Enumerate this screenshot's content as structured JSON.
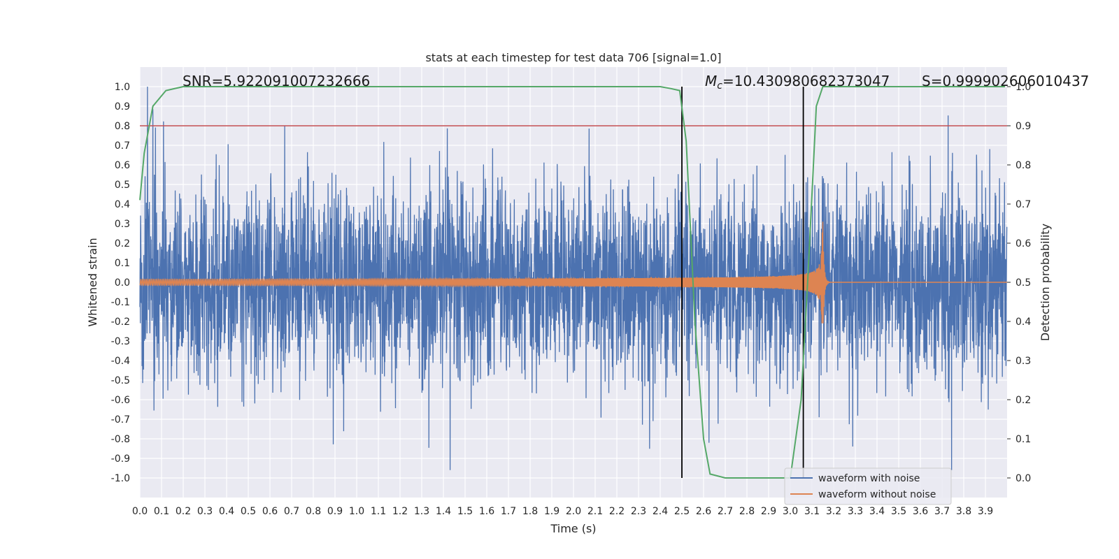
{
  "chart_data": {
    "type": "line",
    "title": "stats at each timestep for test data 706 [signal=1.0]",
    "xlabel": "Time (s)",
    "ylabel_left": "Whitened strain",
    "ylabel_right": "Detection probability",
    "xlim": [
      0.0,
      4.0
    ],
    "ylim_left": [
      -1.1,
      1.1
    ],
    "ylim_right": [
      -0.05,
      1.05
    ],
    "grid": true,
    "legend_position": "lower-right",
    "x_ticks": [
      "0.0",
      "0.1",
      "0.2",
      "0.3",
      "0.4",
      "0.5",
      "0.6",
      "0.7",
      "0.8",
      "0.9",
      "1.0",
      "1.1",
      "1.2",
      "1.3",
      "1.4",
      "1.5",
      "1.6",
      "1.7",
      "1.8",
      "1.9",
      "2.0",
      "2.1",
      "2.2",
      "2.3",
      "2.4",
      "2.5",
      "2.6",
      "2.7",
      "2.8",
      "2.9",
      "3.0",
      "3.1",
      "3.2",
      "3.3",
      "3.4",
      "3.5",
      "3.6",
      "3.7",
      "3.8",
      "3.9"
    ],
    "y_ticks_left": [
      "1.0",
      "0.9",
      "0.8",
      "0.7",
      "0.6",
      "0.5",
      "0.4",
      "0.3",
      "0.2",
      "0.1",
      "0.0",
      "-0.1",
      "-0.2",
      "-0.3",
      "-0.4",
      "-0.5",
      "-0.6",
      "-0.7",
      "-0.8",
      "-0.9",
      "-1.0"
    ],
    "y_ticks_right": [
      "1.0",
      "0.9",
      "0.8",
      "0.7",
      "0.6",
      "0.5",
      "0.4",
      "0.3",
      "0.2",
      "0.1",
      "0.0"
    ],
    "annotations": {
      "snr": "SNR=5.922091007232666",
      "mc_symbol": "M",
      "mc_sub": "c",
      "mc_value": "=10.430980682373047",
      "s": "S=0.999902606010437"
    },
    "series": [
      {
        "name": "waveform with noise",
        "color": "#4c72b0",
        "axis": "left",
        "description_peaks": "dense noise, amplitude mostly within ±0.5, peaks up to ~1.0 and down to ~-0.95"
      },
      {
        "name": "waveform without noise",
        "color": "#dd8452",
        "axis": "left",
        "chirp": {
          "start_amp": 0.015,
          "merger_time": 3.15,
          "peak_amp_pos": 0.31,
          "peak_amp_neg": -0.21,
          "end_time": 3.17
        }
      },
      {
        "name": "Detection probability",
        "color": "#55a868",
        "axis": "right",
        "x": [
          0.0,
          0.02,
          0.06,
          0.12,
          0.2,
          2.4,
          2.45,
          2.49,
          2.52,
          2.56,
          2.6,
          2.63,
          2.7,
          2.95,
          3.0,
          3.05,
          3.08,
          3.12,
          3.15,
          3.99
        ],
        "y": [
          0.71,
          0.83,
          0.95,
          0.99,
          1.0,
          1.0,
          0.995,
          0.99,
          0.86,
          0.4,
          0.1,
          0.01,
          0.0,
          0.0,
          0.0,
          0.2,
          0.5,
          0.95,
          1.0,
          1.0
        ]
      }
    ],
    "threshold_line": {
      "axis": "right",
      "value": 0.9,
      "color": "#c44e52"
    },
    "vertical_lines": [
      {
        "x": 2.5,
        "color": "#000000"
      },
      {
        "x": 3.06,
        "color": "#000000"
      }
    ]
  }
}
